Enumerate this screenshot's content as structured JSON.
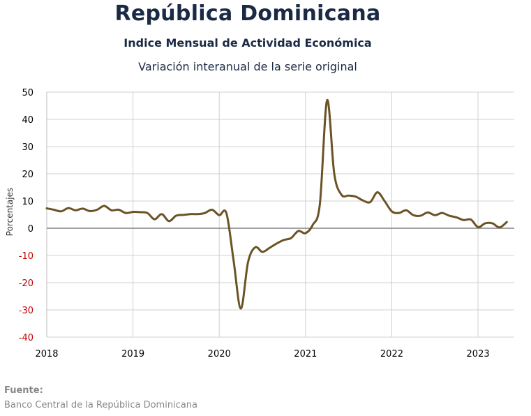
{
  "header": {
    "title": "República Dominicana",
    "subtitle": "Indice Mensual de  Actividad Económica",
    "caption": "Variación interanual de la serie original"
  },
  "source": {
    "label": "Fuente:",
    "text": "Banco Central de la República Dominicana"
  },
  "chart_data": {
    "type": "line",
    "title": "Variación interanual de la serie original",
    "ylabel": "Porcentajes",
    "xlabel": "",
    "ylim": [
      -40,
      50
    ],
    "xlim": [
      2018.0,
      2023.42
    ],
    "yticks": [
      "50",
      "40",
      "30",
      "20",
      "10",
      "0",
      "-10",
      "-20",
      "-30",
      "-40"
    ],
    "xticks": [
      "2018",
      "2019",
      "2020",
      "2021",
      "2022",
      "2023"
    ],
    "grid": true,
    "colors": {
      "line": "#6b5325",
      "positive_tick": "#000000",
      "negative_tick": "#c00000",
      "grid": "#d0d0d0",
      "zero_line": "#808080"
    },
    "series": [
      {
        "name": "",
        "x": [
          "2018-01",
          "2018-02",
          "2018-03",
          "2018-04",
          "2018-05",
          "2018-06",
          "2018-07",
          "2018-08",
          "2018-09",
          "2018-10",
          "2018-11",
          "2018-12",
          "2019-01",
          "2019-02",
          "2019-03",
          "2019-04",
          "2019-05",
          "2019-06",
          "2019-07",
          "2019-08",
          "2019-09",
          "2019-10",
          "2019-11",
          "2019-12",
          "2020-01",
          "2020-02",
          "2020-03",
          "2020-04",
          "2020-05",
          "2020-06",
          "2020-07",
          "2020-08",
          "2020-09",
          "2020-10",
          "2020-11",
          "2020-12",
          "2021-01",
          "2021-02",
          "2021-03",
          "2021-04",
          "2021-05",
          "2021-06",
          "2021-07",
          "2021-08",
          "2021-09",
          "2021-10",
          "2021-11",
          "2021-12",
          "2022-01",
          "2022-02",
          "2022-03",
          "2022-04",
          "2022-05",
          "2022-06",
          "2022-07",
          "2022-08",
          "2022-09",
          "2022-10",
          "2022-11",
          "2022-12",
          "2023-01",
          "2023-02",
          "2023-03",
          "2023-04",
          "2023-05"
        ],
        "values": [
          7.3,
          6.8,
          6.2,
          7.4,
          6.6,
          7.2,
          6.3,
          6.8,
          8.2,
          6.6,
          6.8,
          5.6,
          6.0,
          5.9,
          5.6,
          3.3,
          5.2,
          2.6,
          4.6,
          4.9,
          5.2,
          5.2,
          5.6,
          6.8,
          4.8,
          5.5,
          -12.0,
          -29.5,
          -12.5,
          -7.0,
          -8.7,
          -7.2,
          -5.6,
          -4.3,
          -3.6,
          -1.0,
          -1.8,
          1.2,
          9.0,
          47.0,
          20.0,
          12.3,
          12.0,
          11.6,
          10.2,
          9.6,
          13.2,
          10.0,
          6.2,
          5.6,
          6.6,
          4.8,
          4.6,
          5.8,
          4.8,
          5.6,
          4.6,
          4.0,
          3.0,
          3.2,
          0.4,
          1.8,
          1.8,
          0.3,
          2.3
        ]
      }
    ]
  }
}
